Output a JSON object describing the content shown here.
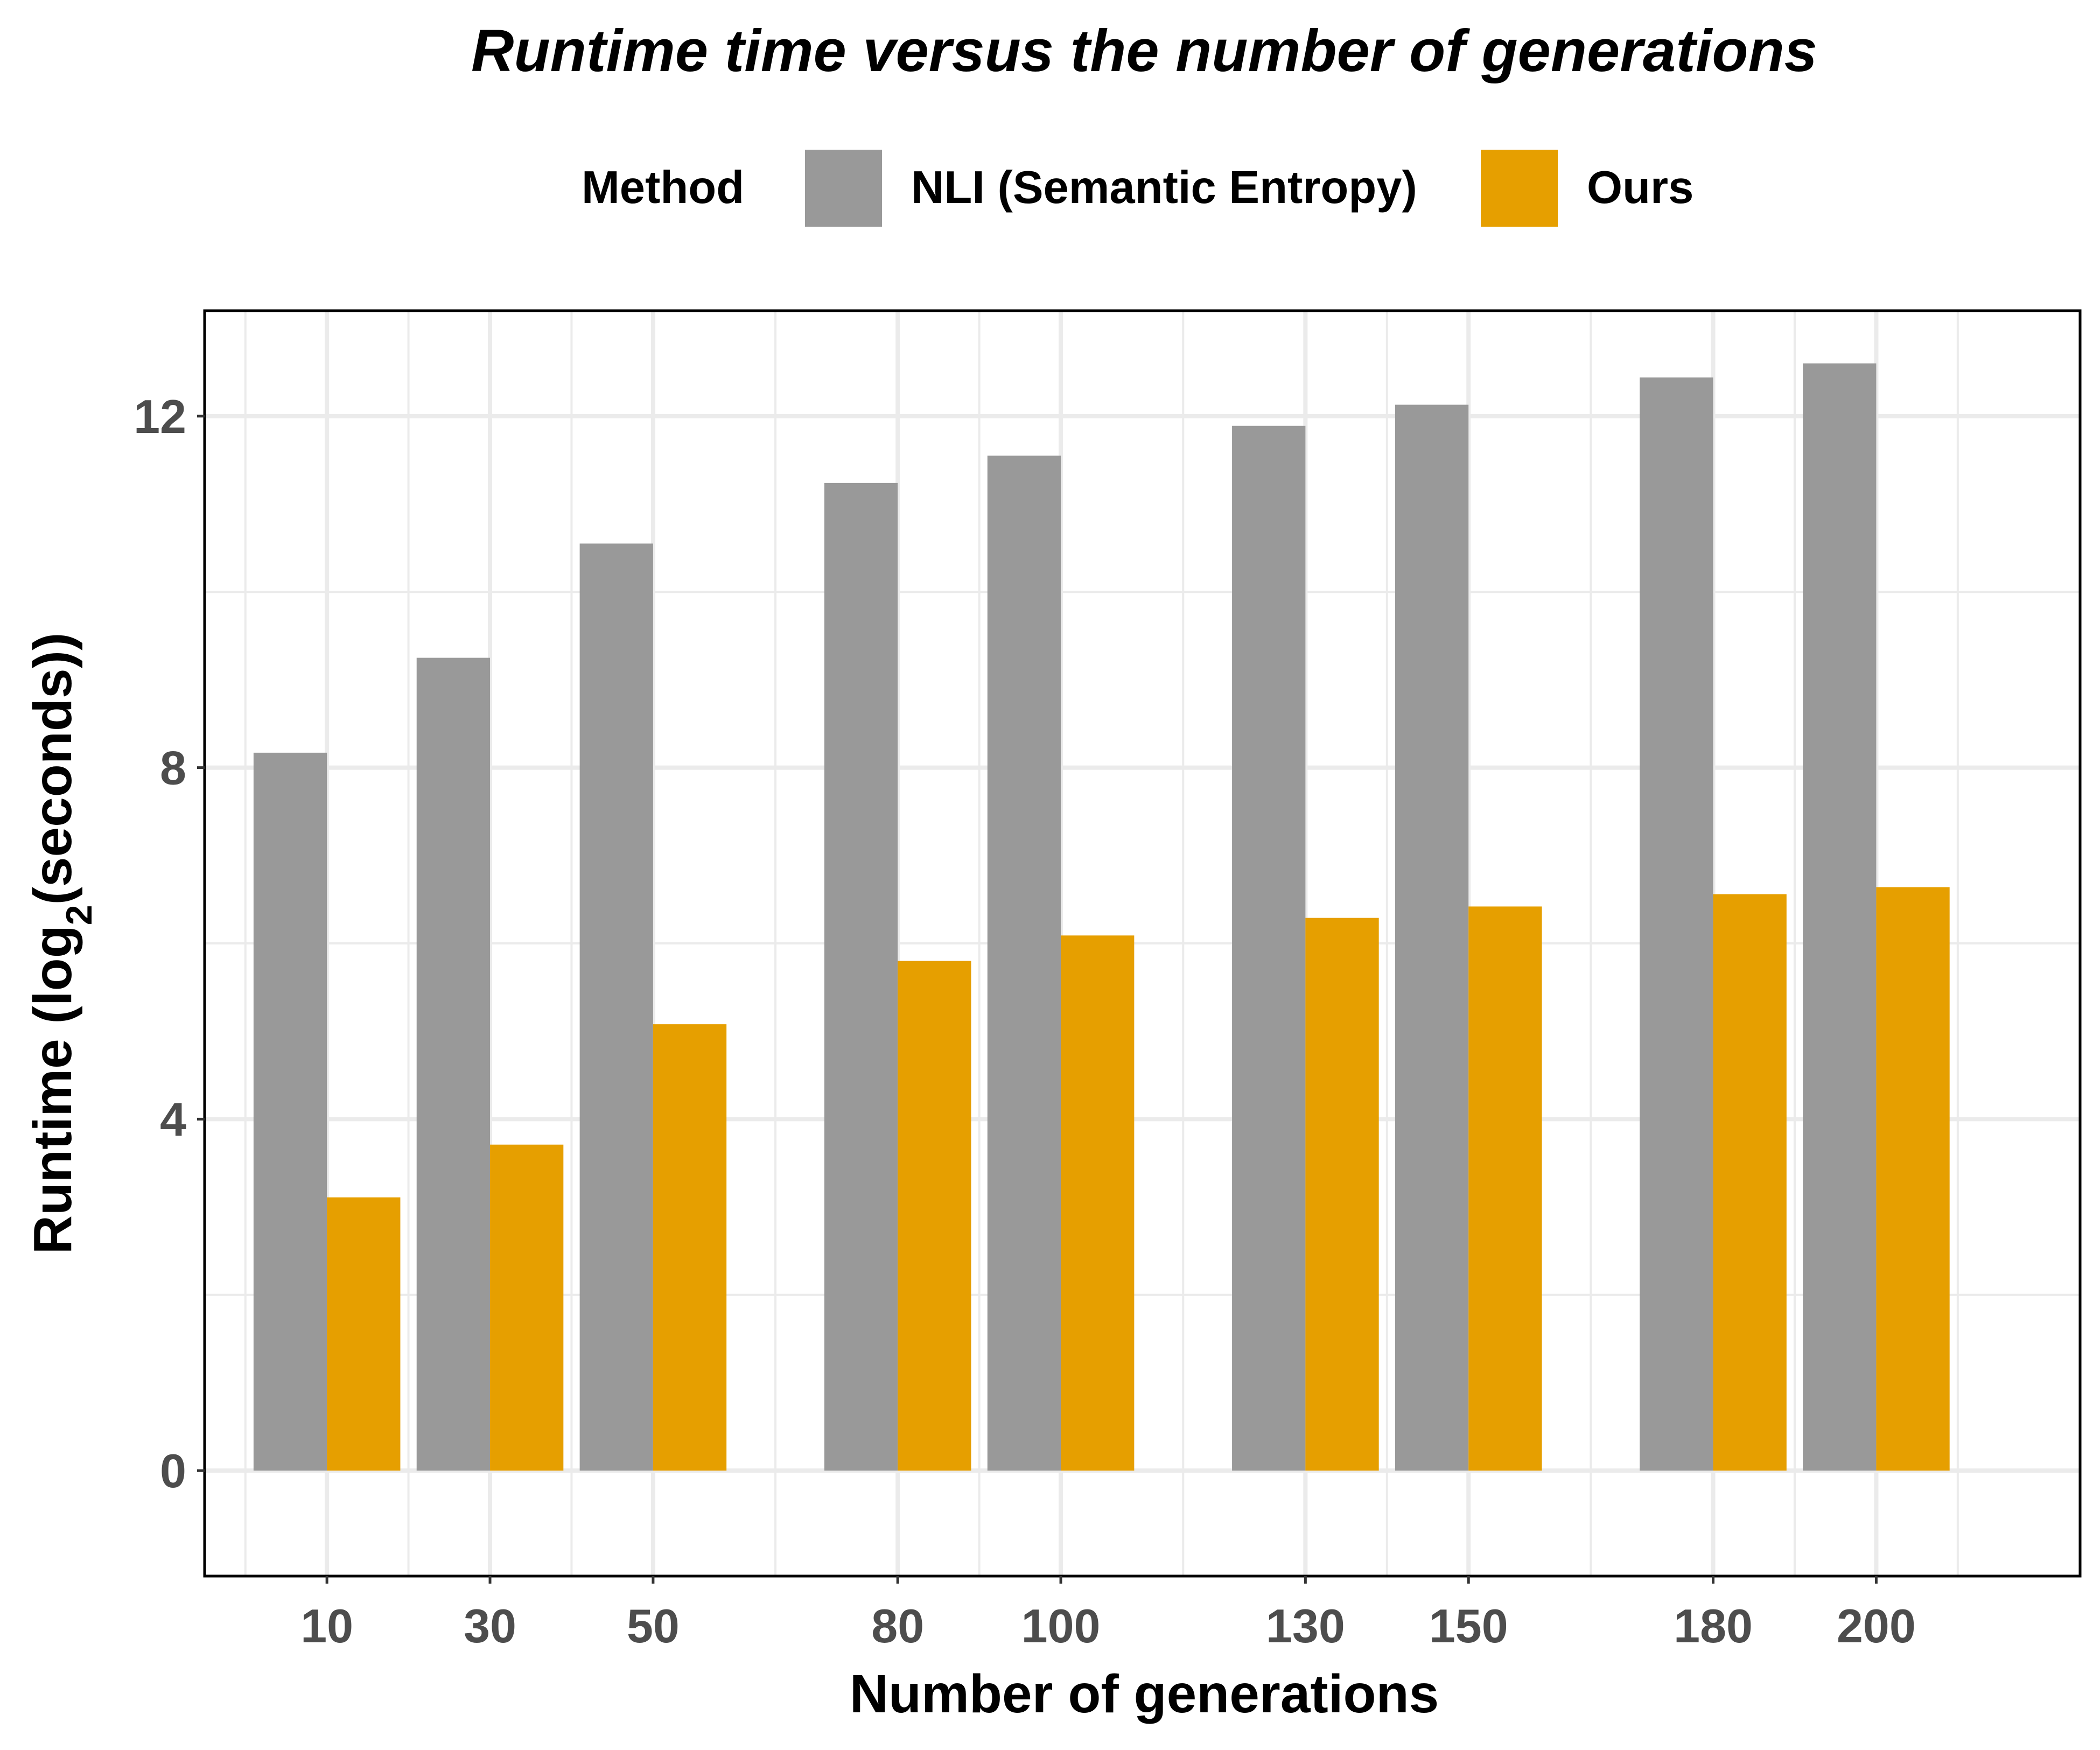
{
  "chart_data": {
    "type": "bar",
    "title": "Runtime time versus the number of generations",
    "xlabel": "Number of generations",
    "ylabel_main": "Runtime (log",
    "ylabel_sub": "2",
    "ylabel_tail": "(seconds))",
    "legend": {
      "title": "Method",
      "placement": "top"
    },
    "x": [
      10,
      30,
      50,
      80,
      100,
      130,
      150,
      180,
      200
    ],
    "xlim": [
      -5,
      225
    ],
    "ylim": [
      -1.2,
      13.2
    ],
    "yticks": [
      0,
      4,
      8,
      12
    ],
    "grid": true,
    "series": [
      {
        "name": "NLI (Semantic Entropy)",
        "color": "#999999",
        "values": [
          8.17,
          9.25,
          10.55,
          11.24,
          11.55,
          11.89,
          12.13,
          12.44,
          12.6
        ]
      },
      {
        "name": "Ours",
        "color": "#E69F00",
        "values": [
          3.11,
          3.71,
          5.08,
          5.8,
          6.09,
          6.29,
          6.42,
          6.56,
          6.64
        ]
      }
    ]
  }
}
